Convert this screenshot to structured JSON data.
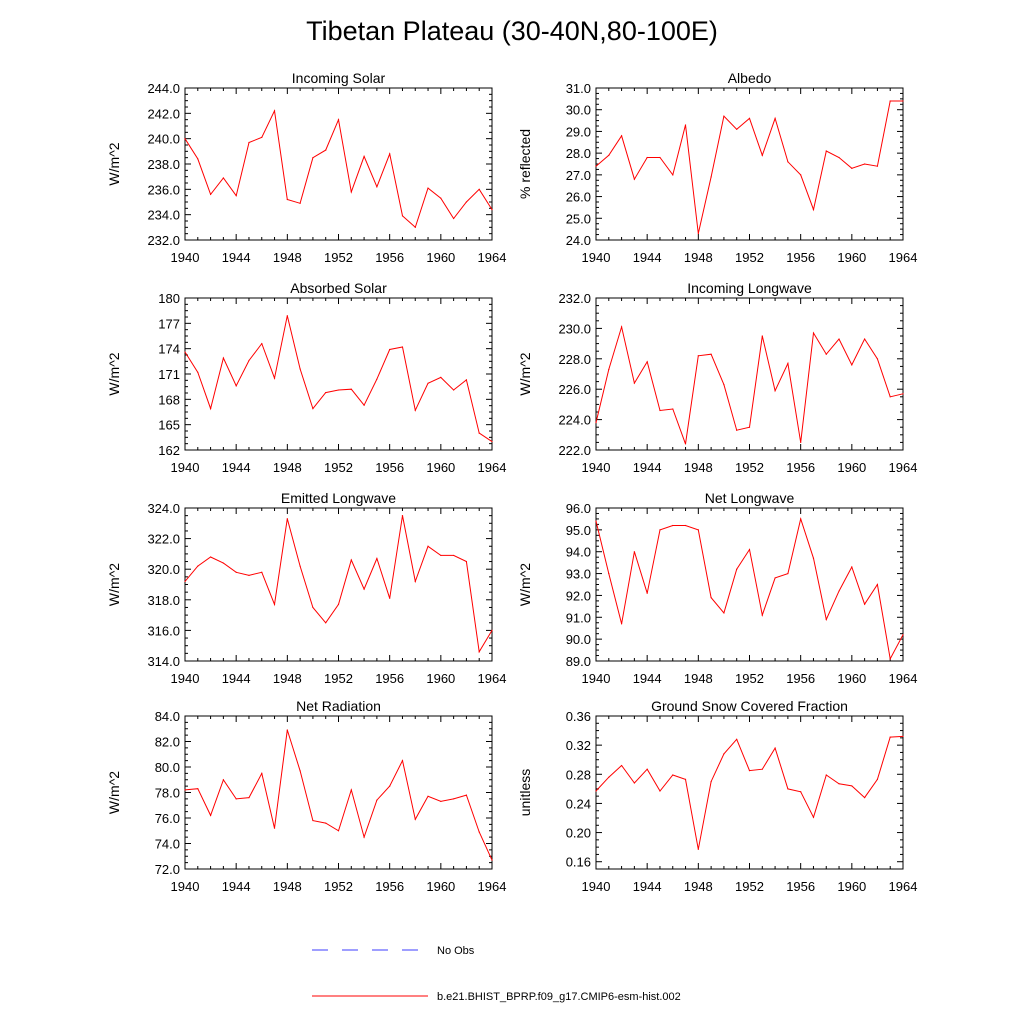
{
  "figure": {
    "title": "Tibetan Plateau (30-40N,80-100E)"
  },
  "legend": [
    {
      "label": "No Obs",
      "color": "#3c3cff",
      "dash": "dashed"
    },
    {
      "label": "b.e21.BHIST_BPRP.f09_g17.CMIP6-esm-hist.002",
      "color": "#ff0000",
      "dash": "solid"
    }
  ],
  "colors": {
    "series": "#ff0000",
    "no_obs": "#3c3cff",
    "axis": "#000000"
  },
  "chart_data": [
    {
      "type": "line",
      "title": "Incoming Solar",
      "ylabel": "W/m^2",
      "xlim": [
        1940,
        1964
      ],
      "ylim": [
        232.0,
        244.0
      ],
      "yticks": [
        232.0,
        234.0,
        236.0,
        238.0,
        240.0,
        242.0,
        244.0
      ],
      "ytick_labels": [
        "232.0",
        "234.0",
        "236.0",
        "238.0",
        "240.0",
        "242.0",
        "244.0"
      ],
      "xticks": [
        1940,
        1944,
        1948,
        1952,
        1956,
        1960,
        1964
      ],
      "xtick_labels": [
        "1940",
        "1944",
        "1948",
        "1952",
        "1956",
        "1960",
        "1964"
      ],
      "x": [
        1940,
        1941,
        1942,
        1943,
        1944,
        1945,
        1946,
        1947,
        1948,
        1949,
        1950,
        1951,
        1952,
        1953,
        1954,
        1955,
        1956,
        1957,
        1958,
        1959,
        1960,
        1961,
        1962,
        1963,
        1964
      ],
      "series": [
        {
          "name": "b.e21.BHIST_BPRP.f09_g17.CMIP6-esm-hist.002",
          "values": [
            240.0,
            238.4,
            235.6,
            236.9,
            235.5,
            239.7,
            240.1,
            242.2,
            235.2,
            234.9,
            238.5,
            239.1,
            241.5,
            235.8,
            238.6,
            236.2,
            238.8,
            233.9,
            233.0,
            236.1,
            235.3,
            233.7,
            235.0,
            236.0,
            234.4
          ]
        }
      ]
    },
    {
      "type": "line",
      "title": "Albedo",
      "ylabel": "% reflected",
      "xlim": [
        1940,
        1964
      ],
      "ylim": [
        24.0,
        31.0
      ],
      "yticks": [
        24.0,
        25.0,
        26.0,
        27.0,
        28.0,
        29.0,
        30.0,
        31.0
      ],
      "ytick_labels": [
        "24.0",
        "25.0",
        "26.0",
        "27.0",
        "28.0",
        "29.0",
        "30.0",
        "31.0"
      ],
      "xticks": [
        1940,
        1944,
        1948,
        1952,
        1956,
        1960,
        1964
      ],
      "xtick_labels": [
        "1940",
        "1944",
        "1948",
        "1952",
        "1956",
        "1960",
        "1964"
      ],
      "x": [
        1940,
        1941,
        1942,
        1943,
        1944,
        1945,
        1946,
        1947,
        1948,
        1949,
        1950,
        1951,
        1952,
        1953,
        1954,
        1955,
        1956,
        1957,
        1958,
        1959,
        1960,
        1961,
        1962,
        1963,
        1964
      ],
      "series": [
        {
          "name": "b.e21.BHIST_BPRP.f09_g17.CMIP6-esm-hist.002",
          "values": [
            27.4,
            27.9,
            28.8,
            26.8,
            27.8,
            27.8,
            27.0,
            29.3,
            24.3,
            26.9,
            29.7,
            29.1,
            29.6,
            27.9,
            29.6,
            27.6,
            27.0,
            25.4,
            28.1,
            27.8,
            27.3,
            27.5,
            27.4,
            30.4,
            30.4
          ]
        }
      ]
    },
    {
      "type": "line",
      "title": "Absorbed Solar",
      "ylabel": "W/m^2",
      "xlim": [
        1940,
        1964
      ],
      "ylim": [
        162,
        180
      ],
      "yticks": [
        162,
        165,
        168,
        171,
        174,
        177,
        180
      ],
      "ytick_labels": [
        "162",
        "165",
        "168",
        "171",
        "174",
        "177",
        "180"
      ],
      "xticks": [
        1940,
        1944,
        1948,
        1952,
        1956,
        1960,
        1964
      ],
      "xtick_labels": [
        "1940",
        "1944",
        "1948",
        "1952",
        "1956",
        "1960",
        "1964"
      ],
      "x": [
        1940,
        1941,
        1942,
        1943,
        1944,
        1945,
        1946,
        1947,
        1948,
        1949,
        1950,
        1951,
        1952,
        1953,
        1954,
        1955,
        1956,
        1957,
        1958,
        1959,
        1960,
        1961,
        1962,
        1963,
        1964
      ],
      "series": [
        {
          "name": "b.e21.BHIST_BPRP.f09_g17.CMIP6-esm-hist.002",
          "values": [
            173.6,
            171.2,
            166.9,
            172.9,
            169.6,
            172.6,
            174.6,
            170.5,
            177.9,
            171.6,
            166.9,
            168.8,
            169.1,
            169.2,
            167.3,
            170.4,
            173.9,
            174.2,
            166.7,
            169.9,
            170.6,
            169.1,
            170.3,
            164.0,
            163.0
          ]
        }
      ]
    },
    {
      "type": "line",
      "title": "Incoming Longwave",
      "ylabel": "W/m^2",
      "xlim": [
        1940,
        1964
      ],
      "ylim": [
        222.0,
        232.0
      ],
      "yticks": [
        222.0,
        224.0,
        226.0,
        228.0,
        230.0,
        232.0
      ],
      "ytick_labels": [
        "222.0",
        "224.0",
        "226.0",
        "228.0",
        "230.0",
        "232.0"
      ],
      "xticks": [
        1940,
        1944,
        1948,
        1952,
        1956,
        1960,
        1964
      ],
      "xtick_labels": [
        "1940",
        "1944",
        "1948",
        "1952",
        "1956",
        "1960",
        "1964"
      ],
      "x": [
        1940,
        1941,
        1942,
        1943,
        1944,
        1945,
        1946,
        1947,
        1948,
        1949,
        1950,
        1951,
        1952,
        1953,
        1954,
        1955,
        1956,
        1957,
        1958,
        1959,
        1960,
        1961,
        1962,
        1963,
        1964
      ],
      "series": [
        {
          "name": "b.e21.BHIST_BPRP.f09_g17.CMIP6-esm-hist.002",
          "values": [
            223.8,
            227.3,
            230.1,
            226.4,
            227.8,
            224.6,
            224.7,
            222.4,
            228.2,
            228.3,
            226.3,
            223.3,
            223.5,
            229.5,
            225.9,
            227.7,
            222.5,
            229.7,
            228.3,
            229.3,
            227.6,
            229.3,
            228.0,
            225.5,
            225.7
          ]
        }
      ]
    },
    {
      "type": "line",
      "title": "Emitted Longwave",
      "ylabel": "W/m^2",
      "xlim": [
        1940,
        1964
      ],
      "ylim": [
        314.0,
        324.0
      ],
      "yticks": [
        314.0,
        316.0,
        318.0,
        320.0,
        322.0,
        324.0
      ],
      "ytick_labels": [
        "314.0",
        "316.0",
        "318.0",
        "320.0",
        "322.0",
        "324.0"
      ],
      "xticks": [
        1940,
        1944,
        1948,
        1952,
        1956,
        1960,
        1964
      ],
      "xtick_labels": [
        "1940",
        "1944",
        "1948",
        "1952",
        "1956",
        "1960",
        "1964"
      ],
      "x": [
        1940,
        1941,
        1942,
        1943,
        1944,
        1945,
        1946,
        1947,
        1948,
        1949,
        1950,
        1951,
        1952,
        1953,
        1954,
        1955,
        1956,
        1957,
        1958,
        1959,
        1960,
        1961,
        1962,
        1963,
        1964
      ],
      "series": [
        {
          "name": "b.e21.BHIST_BPRP.f09_g17.CMIP6-esm-hist.002",
          "values": [
            319.2,
            320.2,
            320.8,
            320.4,
            319.8,
            319.6,
            319.8,
            317.7,
            323.3,
            320.2,
            317.5,
            316.5,
            317.7,
            320.6,
            318.7,
            320.7,
            318.1,
            323.5,
            319.2,
            321.5,
            320.9,
            320.9,
            320.5,
            314.6,
            316.0
          ]
        }
      ]
    },
    {
      "type": "line",
      "title": "Net Longwave",
      "ylabel": "W/m^2",
      "xlim": [
        1940,
        1964
      ],
      "ylim": [
        89.0,
        96.0
      ],
      "yticks": [
        89.0,
        90.0,
        91.0,
        92.0,
        93.0,
        94.0,
        95.0,
        96.0
      ],
      "ytick_labels": [
        "89.0",
        "90.0",
        "91.0",
        "92.0",
        "93.0",
        "94.0",
        "95.0",
        "96.0"
      ],
      "xticks": [
        1940,
        1944,
        1948,
        1952,
        1956,
        1960,
        1964
      ],
      "xtick_labels": [
        "1940",
        "1944",
        "1948",
        "1952",
        "1956",
        "1960",
        "1964"
      ],
      "x": [
        1940,
        1941,
        1942,
        1943,
        1944,
        1945,
        1946,
        1947,
        1948,
        1949,
        1950,
        1951,
        1952,
        1953,
        1954,
        1955,
        1956,
        1957,
        1958,
        1959,
        1960,
        1961,
        1962,
        1963,
        1964
      ],
      "series": [
        {
          "name": "b.e21.BHIST_BPRP.f09_g17.CMIP6-esm-hist.002",
          "values": [
            95.4,
            93.0,
            90.7,
            94.0,
            92.1,
            95.0,
            95.2,
            95.2,
            95.0,
            91.9,
            91.2,
            93.2,
            94.1,
            91.1,
            92.8,
            93.0,
            95.5,
            93.7,
            90.9,
            92.2,
            93.3,
            91.6,
            92.5,
            89.1,
            90.2
          ]
        }
      ]
    },
    {
      "type": "line",
      "title": "Net Radiation",
      "ylabel": "W/m^2",
      "xlim": [
        1940,
        1964
      ],
      "ylim": [
        72.0,
        84.0
      ],
      "yticks": [
        72.0,
        74.0,
        76.0,
        78.0,
        80.0,
        82.0,
        84.0
      ],
      "ytick_labels": [
        "72.0",
        "74.0",
        "76.0",
        "78.0",
        "80.0",
        "82.0",
        "84.0"
      ],
      "xticks": [
        1940,
        1944,
        1948,
        1952,
        1956,
        1960,
        1964
      ],
      "xtick_labels": [
        "1940",
        "1944",
        "1948",
        "1952",
        "1956",
        "1960",
        "1964"
      ],
      "x": [
        1940,
        1941,
        1942,
        1943,
        1944,
        1945,
        1946,
        1947,
        1948,
        1949,
        1950,
        1951,
        1952,
        1953,
        1954,
        1955,
        1956,
        1957,
        1958,
        1959,
        1960,
        1961,
        1962,
        1963,
        1964
      ],
      "series": [
        {
          "name": "b.e21.BHIST_BPRP.f09_g17.CMIP6-esm-hist.002",
          "values": [
            78.2,
            78.3,
            76.2,
            79.0,
            77.5,
            77.6,
            79.5,
            75.2,
            82.9,
            79.7,
            75.8,
            75.6,
            75.0,
            78.2,
            74.5,
            77.4,
            78.5,
            80.5,
            75.9,
            77.7,
            77.3,
            77.5,
            77.8,
            74.9,
            72.7
          ]
        }
      ]
    },
    {
      "type": "line",
      "title": "Ground Snow Covered Fraction",
      "ylabel": "unitless",
      "xlim": [
        1940,
        1964
      ],
      "ylim": [
        0.15,
        0.36
      ],
      "yticks": [
        0.16,
        0.2,
        0.24,
        0.28,
        0.32,
        0.36
      ],
      "ytick_labels": [
        "0.16",
        "0.20",
        "0.24",
        "0.28",
        "0.32",
        "0.36"
      ],
      "xticks": [
        1940,
        1944,
        1948,
        1952,
        1956,
        1960,
        1964
      ],
      "xtick_labels": [
        "1940",
        "1944",
        "1948",
        "1952",
        "1956",
        "1960",
        "1964"
      ],
      "x": [
        1940,
        1941,
        1942,
        1943,
        1944,
        1945,
        1946,
        1947,
        1948,
        1949,
        1950,
        1951,
        1952,
        1953,
        1954,
        1955,
        1956,
        1957,
        1958,
        1959,
        1960,
        1961,
        1962,
        1963,
        1964
      ],
      "series": [
        {
          "name": "b.e21.BHIST_BPRP.f09_g17.CMIP6-esm-hist.002",
          "values": [
            0.257,
            0.276,
            0.292,
            0.268,
            0.287,
            0.257,
            0.279,
            0.273,
            0.177,
            0.27,
            0.308,
            0.328,
            0.285,
            0.287,
            0.316,
            0.26,
            0.256,
            0.221,
            0.279,
            0.267,
            0.264,
            0.248,
            0.273,
            0.331,
            0.332
          ]
        }
      ]
    }
  ]
}
